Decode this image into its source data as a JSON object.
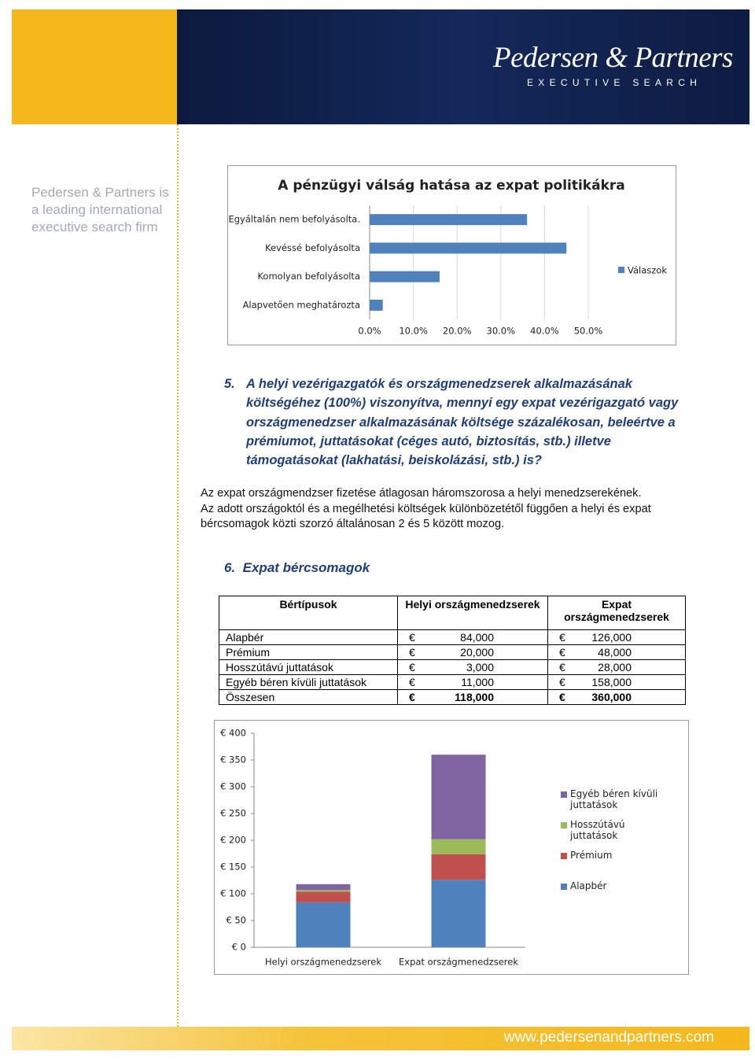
{
  "header": {
    "brand": "Pedersen & Partners",
    "tagline": "EXECUTIVE SEARCH",
    "side_lines": [
      "Pedersen & Partners is",
      "a leading international",
      "executive search firm"
    ]
  },
  "chart_data": [
    {
      "type": "bar",
      "orientation": "horizontal",
      "title": "A pénzügyi válság hatása az expat politikákra",
      "categories": [
        "Egyáltalán nem befolyásolta.",
        "Kevéssé befolyásolta",
        "Komolyan befolyásolta",
        "Alapvetően meghatározta"
      ],
      "series": [
        {
          "name": "Válaszok",
          "color": "#4f81bd",
          "values": [
            36,
            45,
            16,
            3
          ]
        }
      ],
      "xlim": [
        0,
        50
      ],
      "xticks": [
        {
          "value": 0,
          "label": "0.0%"
        },
        {
          "value": 10,
          "label": "10.0%"
        },
        {
          "value": 20,
          "label": "20.0%"
        },
        {
          "value": 30,
          "label": "30.0%"
        },
        {
          "value": 40,
          "label": "40.0%"
        },
        {
          "value": 50,
          "label": "50.0%"
        }
      ],
      "grid": true,
      "legend": "right"
    },
    {
      "type": "stacked_bar",
      "categories": [
        "Helyi országmenedzserek",
        "Expat országmenedzserek"
      ],
      "series": [
        {
          "name": "Alapbér",
          "color": "#4f81bd",
          "values": [
            84,
            126
          ]
        },
        {
          "name": "Prémium",
          "color": "#c0504d",
          "values": [
            20,
            48
          ]
        },
        {
          "name": "Hosszútávú juttatások",
          "color": "#9bbb59",
          "values": [
            3,
            28
          ]
        },
        {
          "name": "Egyéb béren kívüli juttatások",
          "color": "#8064a2",
          "values": [
            11,
            158
          ]
        }
      ],
      "ylim": [
        0,
        400
      ],
      "yticks": [
        {
          "value": 0,
          "label": "€ 0"
        },
        {
          "value": 50,
          "label": "€ 50"
        },
        {
          "value": 100,
          "label": "€ 100"
        },
        {
          "value": 150,
          "label": "€ 150"
        },
        {
          "value": 200,
          "label": "€ 200"
        },
        {
          "value": 250,
          "label": "€ 250"
        },
        {
          "value": 300,
          "label": "€ 300"
        },
        {
          "value": 350,
          "label": "€ 350"
        },
        {
          "value": 400,
          "label": "€ 400"
        }
      ],
      "grid": false,
      "legend": "right"
    }
  ],
  "section5": {
    "number": "5.",
    "title": "A helyi vezérigazgatók és országmenedzserek alkalmazásának költségéhez (100%) viszonyítva, mennyi egy expat vezérigazgató vagy országmenedzser alkalmazásának költsége százalékosan, beleértve a prémiumot, juttatásokat (céges autó, biztosítás, stb.) illetve támogatásokat (lakhatási, beiskolázási, stb.) is?",
    "paragraphs": [
      "Az expat országmendzser fizetése átlagosan háromszorosa a helyi menedzserekének.",
      "Az adott országoktól és a megélhetési költségek különbözetétől függően a helyi és expat bércsomagok közti szorzó általánosan 2 és 5 között mozog."
    ]
  },
  "section6": {
    "number": "6.",
    "title": "Expat bércsomagok",
    "table": {
      "headers": [
        "Bértípusok",
        "Helyi országmenedzserek",
        "Expat országmenedzserek"
      ],
      "currency": "€",
      "rows": [
        [
          "Alapbér",
          "84,000",
          "126,000"
        ],
        [
          "Prémium",
          "20,000",
          "48,000"
        ],
        [
          "Hosszútávú juttatások",
          "3,000",
          "28,000"
        ],
        [
          "Egyéb béren kívüli juttatások",
          "11,000",
          "158,000"
        ],
        [
          "Összesen",
          "118,000",
          "360,000"
        ]
      ]
    }
  },
  "footer": {
    "url": "www.pedersenandpartners.com"
  }
}
